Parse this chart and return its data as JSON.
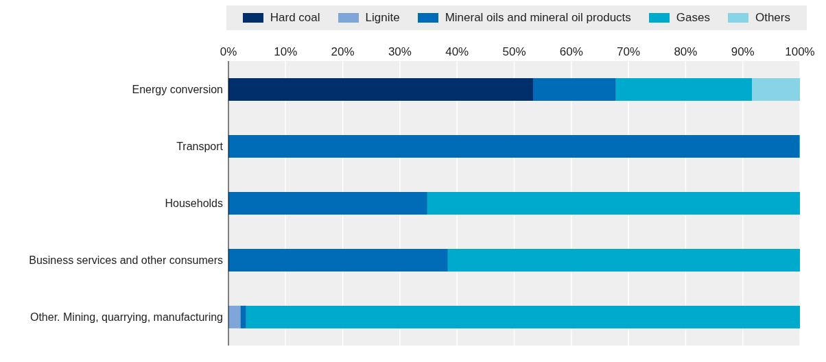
{
  "chart_data": {
    "type": "bar",
    "orientation": "horizontal",
    "stacked": true,
    "legend": "top",
    "grid": "x",
    "categories": [
      "Energy conversion",
      "Transport",
      "Households",
      "Business services and other consumers",
      "Other. Mining, quarrying, manufacturing"
    ],
    "series": [
      {
        "name": "Hard coal",
        "color": "#002f6c",
        "values": [
          53.3,
          0,
          0,
          0,
          0
        ]
      },
      {
        "name": "Lignite",
        "color": "#7fa6d8",
        "values": [
          0,
          0,
          0,
          0,
          2.1
        ]
      },
      {
        "name": "Mineral oils and mineral oil products",
        "color": "#006bb6",
        "values": [
          14.5,
          99.9,
          34.8,
          38.4,
          1.0
        ]
      },
      {
        "name": "Gases",
        "color": "#00aacc",
        "values": [
          23.8,
          0.1,
          65.2,
          61.6,
          96.9
        ]
      },
      {
        "name": "Others",
        "color": "#88d3e6",
        "values": [
          8.4,
          0,
          0,
          0,
          0
        ]
      }
    ],
    "xlim": [
      0,
      100
    ],
    "xticks": [
      {
        "value": 0,
        "label": "0%"
      },
      {
        "value": 10,
        "label": "10%"
      },
      {
        "value": 20,
        "label": "20%"
      },
      {
        "value": 30,
        "label": "30%"
      },
      {
        "value": 40,
        "label": "40%"
      },
      {
        "value": 50,
        "label": "50%"
      },
      {
        "value": 60,
        "label": "60%"
      },
      {
        "value": 70,
        "label": "70%"
      },
      {
        "value": 80,
        "label": "80%"
      },
      {
        "value": 90,
        "label": "90%"
      },
      {
        "value": 100,
        "label": "100%"
      }
    ]
  }
}
